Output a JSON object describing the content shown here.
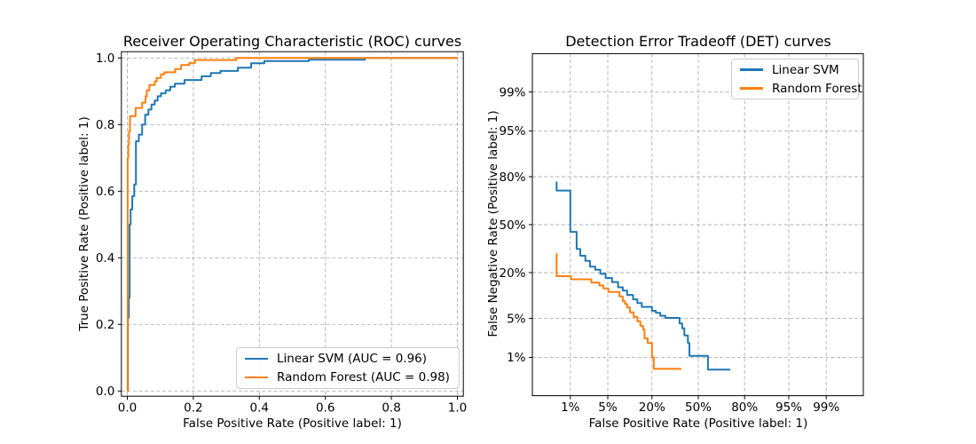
{
  "figure": {
    "background": "#ffffff",
    "grid_color": "#b0b0b0",
    "spine_color": "#000000",
    "text_color": "#000000",
    "legend_border_color": "#cccccc"
  },
  "chart_data": [
    {
      "type": "line",
      "subtype": "roc_curve",
      "title": "Receiver Operating Characteristic (ROC) curves",
      "xlabel": "False Positive Rate (Positive label: 1)",
      "ylabel": "True Positive Rate (Positive label: 1)",
      "xlim": [
        0,
        1
      ],
      "ylim": [
        0,
        1
      ],
      "xticks": [
        0,
        0.2,
        0.4,
        0.6,
        0.8,
        1.0
      ],
      "xtick_labels": [
        "0.0",
        "0.2",
        "0.4",
        "0.6",
        "0.8",
        "1.0"
      ],
      "yticks": [
        0,
        0.2,
        0.4,
        0.6,
        0.8,
        1.0
      ],
      "ytick_labels": [
        "0.0",
        "0.2",
        "0.4",
        "0.6",
        "0.8",
        "1.0"
      ],
      "grid": "dashed",
      "legend_position": "lower right",
      "series": [
        {
          "name": "Linear SVM (AUC = 0.96)",
          "classifier": "Linear SVM",
          "auc": 0.96,
          "color": "#1f77b4",
          "points": [
            [
              0,
              0
            ],
            [
              0.002,
              0
            ],
            [
              0.002,
              0.22
            ],
            [
              0.0045,
              0.22
            ],
            [
              0.0045,
              0.28
            ],
            [
              0.007,
              0.28
            ],
            [
              0.007,
              0.5
            ],
            [
              0.01,
              0.5
            ],
            [
              0.01,
              0.545
            ],
            [
              0.015,
              0.545
            ],
            [
              0.015,
              0.585
            ],
            [
              0.021,
              0.585
            ],
            [
              0.021,
              0.62
            ],
            [
              0.026,
              0.62
            ],
            [
              0.026,
              0.75
            ],
            [
              0.035,
              0.75
            ],
            [
              0.035,
              0.77
            ],
            [
              0.045,
              0.77
            ],
            [
              0.045,
              0.8
            ],
            [
              0.054,
              0.8
            ],
            [
              0.054,
              0.83
            ],
            [
              0.064,
              0.83
            ],
            [
              0.064,
              0.845
            ],
            [
              0.073,
              0.845
            ],
            [
              0.073,
              0.86
            ],
            [
              0.083,
              0.86
            ],
            [
              0.083,
              0.872
            ],
            [
              0.092,
              0.872
            ],
            [
              0.092,
              0.885
            ],
            [
              0.102,
              0.885
            ],
            [
              0.102,
              0.894
            ],
            [
              0.116,
              0.894
            ],
            [
              0.116,
              0.903
            ],
            [
              0.13,
              0.903
            ],
            [
              0.13,
              0.914
            ],
            [
              0.144,
              0.914
            ],
            [
              0.144,
              0.923
            ],
            [
              0.173,
              0.923
            ],
            [
              0.173,
              0.934
            ],
            [
              0.225,
              0.934
            ],
            [
              0.225,
              0.945
            ],
            [
              0.253,
              0.945
            ],
            [
              0.253,
              0.955
            ],
            [
              0.282,
              0.955
            ],
            [
              0.282,
              0.961
            ],
            [
              0.335,
              0.961
            ],
            [
              0.335,
              0.971
            ],
            [
              0.375,
              0.971
            ],
            [
              0.375,
              0.984
            ],
            [
              0.415,
              0.984
            ],
            [
              0.415,
              0.991
            ],
            [
              0.55,
              0.991
            ],
            [
              0.55,
              0.995
            ],
            [
              0.72,
              0.995
            ],
            [
              0.72,
              1.0
            ],
            [
              1.0,
              1.0
            ]
          ]
        },
        {
          "name": "Random Forest (AUC = 0.98)",
          "classifier": "Random Forest",
          "auc": 0.98,
          "color": "#ff7f0e",
          "points": [
            [
              0,
              0
            ],
            [
              0.001,
              0
            ],
            [
              0.001,
              0.7
            ],
            [
              0.003,
              0.7
            ],
            [
              0.003,
              0.74
            ],
            [
              0.005,
              0.74
            ],
            [
              0.005,
              0.78
            ],
            [
              0.008,
              0.78
            ],
            [
              0.008,
              0.825
            ],
            [
              0.025,
              0.825
            ],
            [
              0.025,
              0.85
            ],
            [
              0.045,
              0.85
            ],
            [
              0.045,
              0.866
            ],
            [
              0.055,
              0.866
            ],
            [
              0.055,
              0.885
            ],
            [
              0.059,
              0.885
            ],
            [
              0.059,
              0.903
            ],
            [
              0.067,
              0.903
            ],
            [
              0.067,
              0.919
            ],
            [
              0.083,
              0.919
            ],
            [
              0.083,
              0.93
            ],
            [
              0.089,
              0.93
            ],
            [
              0.089,
              0.94
            ],
            [
              0.102,
              0.94
            ],
            [
              0.102,
              0.951
            ],
            [
              0.112,
              0.951
            ],
            [
              0.112,
              0.957
            ],
            [
              0.145,
              0.957
            ],
            [
              0.145,
              0.967
            ],
            [
              0.163,
              0.967
            ],
            [
              0.163,
              0.979
            ],
            [
              0.188,
              0.979
            ],
            [
              0.188,
              0.985
            ],
            [
              0.205,
              0.985
            ],
            [
              0.205,
              0.994
            ],
            [
              0.33,
              0.994
            ],
            [
              0.33,
              1.0
            ],
            [
              1.0,
              1.0
            ]
          ]
        }
      ]
    },
    {
      "type": "line",
      "subtype": "det_curve",
      "scale": "probit (normal deviate), both axes",
      "title": "Detection Error Tradeoff (DET) curves",
      "xlabel": "False Positive Rate (Positive label: 1)",
      "ylabel": "False Negative Rate (Positive label: 1)",
      "xticks": [
        0.01,
        0.05,
        0.2,
        0.5,
        0.8,
        0.95,
        0.99
      ],
      "xtick_labels": [
        "1%",
        "5%",
        "20%",
        "50%",
        "80%",
        "95%",
        "99%"
      ],
      "yticks": [
        0.99,
        0.95,
        0.8,
        0.5,
        0.2,
        0.05,
        0.01
      ],
      "ytick_labels": [
        "99%",
        "95%",
        "80%",
        "50%",
        "20%",
        "5%",
        "1%"
      ],
      "grid": "dashed",
      "legend_position": "upper right",
      "series": [
        {
          "name": "Linear SVM",
          "color": "#1f77b4",
          "points": [
            [
              0.005,
              0.775
            ],
            [
              0.005,
              0.725
            ],
            [
              0.01,
              0.725
            ],
            [
              0.01,
              0.45
            ],
            [
              0.0135,
              0.45
            ],
            [
              0.0135,
              0.335
            ],
            [
              0.016,
              0.335
            ],
            [
              0.016,
              0.293
            ],
            [
              0.02,
              0.293
            ],
            [
              0.02,
              0.263
            ],
            [
              0.0245,
              0.263
            ],
            [
              0.0245,
              0.231
            ],
            [
              0.0305,
              0.231
            ],
            [
              0.0305,
              0.215
            ],
            [
              0.0375,
              0.215
            ],
            [
              0.0375,
              0.194
            ],
            [
              0.046,
              0.194
            ],
            [
              0.046,
              0.175
            ],
            [
              0.0585,
              0.175
            ],
            [
              0.0585,
              0.157
            ],
            [
              0.0725,
              0.157
            ],
            [
              0.0725,
              0.136
            ],
            [
              0.085,
              0.136
            ],
            [
              0.085,
              0.124
            ],
            [
              0.098,
              0.124
            ],
            [
              0.098,
              0.109
            ],
            [
              0.118,
              0.109
            ],
            [
              0.118,
              0.095
            ],
            [
              0.134,
              0.095
            ],
            [
              0.134,
              0.0845
            ],
            [
              0.152,
              0.0845
            ],
            [
              0.152,
              0.0745
            ],
            [
              0.2,
              0.0745
            ],
            [
              0.2,
              0.0655
            ],
            [
              0.22,
              0.0655
            ],
            [
              0.22,
              0.061
            ],
            [
              0.245,
              0.061
            ],
            [
              0.245,
              0.055
            ],
            [
              0.275,
              0.055
            ],
            [
              0.275,
              0.051
            ],
            [
              0.367,
              0.051
            ],
            [
              0.367,
              0.0415
            ],
            [
              0.385,
              0.0415
            ],
            [
              0.385,
              0.0345
            ],
            [
              0.4,
              0.0345
            ],
            [
              0.4,
              0.026
            ],
            [
              0.425,
              0.026
            ],
            [
              0.425,
              0.019
            ],
            [
              0.436,
              0.019
            ],
            [
              0.436,
              0.0107
            ],
            [
              0.57,
              0.0107
            ],
            [
              0.57,
              0.0055
            ],
            [
              0.72,
              0.0055
            ]
          ]
        },
        {
          "name": "Random Forest",
          "color": "#ff7f0e",
          "points": [
            [
              0.005,
              0.308
            ],
            [
              0.005,
              0.183
            ],
            [
              0.0103,
              0.183
            ],
            [
              0.0103,
              0.169
            ],
            [
              0.026,
              0.169
            ],
            [
              0.026,
              0.155
            ],
            [
              0.036,
              0.155
            ],
            [
              0.036,
              0.143
            ],
            [
              0.042,
              0.143
            ],
            [
              0.042,
              0.132
            ],
            [
              0.051,
              0.132
            ],
            [
              0.051,
              0.119
            ],
            [
              0.076,
              0.119
            ],
            [
              0.076,
              0.104
            ],
            [
              0.085,
              0.104
            ],
            [
              0.085,
              0.09
            ],
            [
              0.091,
              0.09
            ],
            [
              0.091,
              0.082
            ],
            [
              0.098,
              0.082
            ],
            [
              0.098,
              0.073
            ],
            [
              0.107,
              0.073
            ],
            [
              0.107,
              0.062
            ],
            [
              0.12,
              0.062
            ],
            [
              0.12,
              0.053
            ],
            [
              0.134,
              0.053
            ],
            [
              0.134,
              0.045
            ],
            [
              0.146,
              0.045
            ],
            [
              0.146,
              0.038
            ],
            [
              0.158,
              0.038
            ],
            [
              0.158,
              0.033
            ],
            [
              0.164,
              0.033
            ],
            [
              0.164,
              0.023
            ],
            [
              0.179,
              0.023
            ],
            [
              0.179,
              0.019
            ],
            [
              0.2,
              0.019
            ],
            [
              0.2,
              0.01
            ],
            [
              0.209,
              0.01
            ],
            [
              0.209,
              0.0057
            ],
            [
              0.379,
              0.0057
            ]
          ]
        }
      ]
    }
  ]
}
